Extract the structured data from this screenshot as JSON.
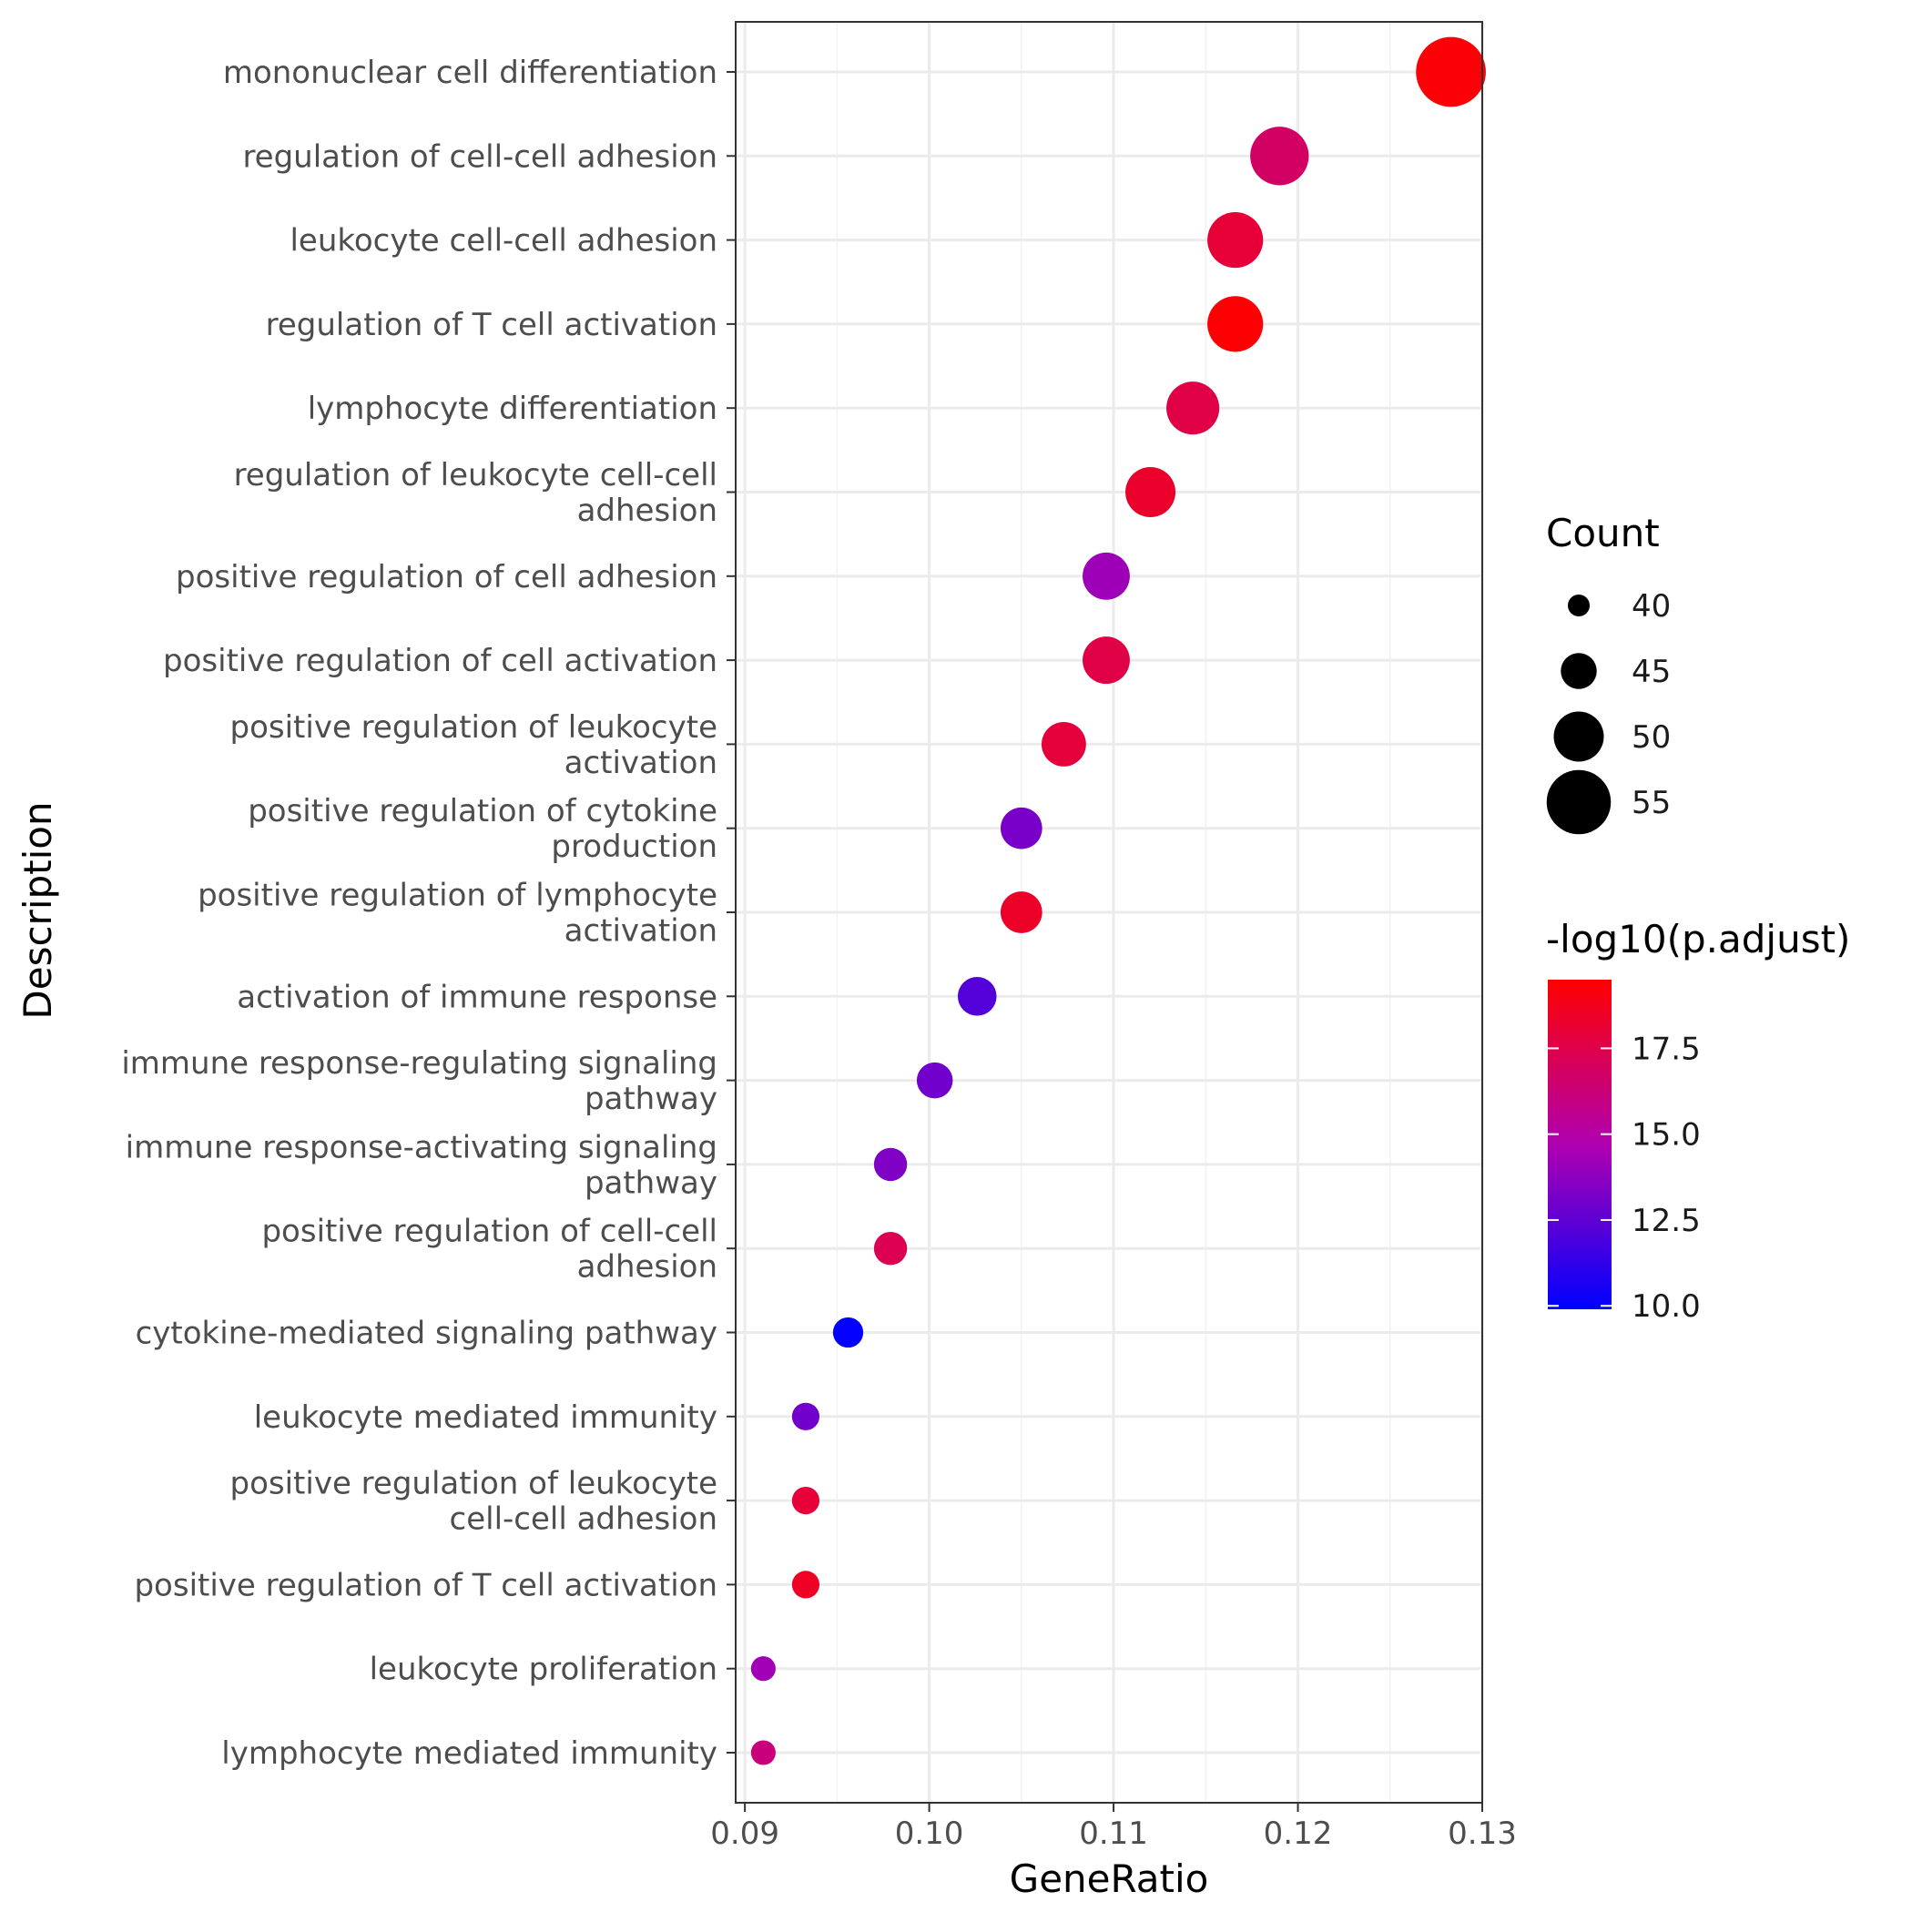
{
  "chart_data": {
    "type": "scatter",
    "xlabel": "GeneRatio",
    "ylabel": "Description",
    "xlim": [
      0.0895,
      0.13
    ],
    "xticks": [
      0.09,
      0.1,
      0.11,
      0.12,
      0.13
    ],
    "xtick_labels": [
      "0.09",
      "0.10",
      "0.11",
      "0.12",
      "0.13"
    ],
    "grid": true,
    "legend_position": "right",
    "size_legend": {
      "title": "Count",
      "entries": [
        {
          "label": "40",
          "value": 40
        },
        {
          "label": "45",
          "value": 45
        },
        {
          "label": "50",
          "value": 50
        },
        {
          "label": "55",
          "value": 55
        }
      ]
    },
    "color_legend": {
      "title": "-log10(p.adjust)",
      "range": [
        9.9,
        19.5
      ],
      "low_color": "#0000ff",
      "high_color": "#ff0000",
      "ticks": [
        {
          "label": "10.0",
          "value": 10.0
        },
        {
          "label": "12.5",
          "value": 12.5
        },
        {
          "label": "15.0",
          "value": 15.0
        },
        {
          "label": "17.5",
          "value": 17.5
        }
      ]
    },
    "points": [
      {
        "label": [
          "mononuclear cell differentiation"
        ],
        "x": 0.1283,
        "count": 57,
        "p": 19.3
      },
      {
        "label": [
          "regulation of cell-cell adhesion"
        ],
        "x": 0.119,
        "count": 53,
        "p": 16.8
      },
      {
        "label": [
          "leukocyte cell-cell adhesion"
        ],
        "x": 0.1166,
        "count": 52,
        "p": 18.0
      },
      {
        "label": [
          "regulation of T cell activation"
        ],
        "x": 0.1166,
        "count": 52,
        "p": 19.4
      },
      {
        "label": [
          "lymphocyte differentiation"
        ],
        "x": 0.1143,
        "count": 51,
        "p": 17.6
      },
      {
        "label": [
          "regulation of leukocyte cell-cell",
          "adhesion"
        ],
        "x": 0.112,
        "count": 50,
        "p": 18.3
      },
      {
        "label": [
          "positive regulation of cell adhesion"
        ],
        "x": 0.1096,
        "count": 49,
        "p": 14.2
      },
      {
        "label": [
          "positive regulation of cell activation"
        ],
        "x": 0.1096,
        "count": 49,
        "p": 17.6
      },
      {
        "label": [
          "positive regulation of leukocyte",
          "activation"
        ],
        "x": 0.1073,
        "count": 48,
        "p": 17.9
      },
      {
        "label": [
          "positive regulation of cytokine",
          "production"
        ],
        "x": 0.105,
        "count": 47,
        "p": 13.2
      },
      {
        "label": [
          "positive regulation of lymphocyte",
          "activation"
        ],
        "x": 0.105,
        "count": 47,
        "p": 18.4
      },
      {
        "label": [
          "activation of immune response"
        ],
        "x": 0.1026,
        "count": 46,
        "p": 12.2
      },
      {
        "label": [
          "immune response-regulating signaling",
          "pathway"
        ],
        "x": 0.1003,
        "count": 45,
        "p": 13.0
      },
      {
        "label": [
          "immune response-activating signaling",
          "pathway"
        ],
        "x": 0.0979,
        "count": 44,
        "p": 13.4
      },
      {
        "label": [
          "positive regulation of cell-cell",
          "adhesion"
        ],
        "x": 0.0979,
        "count": 44,
        "p": 17.3
      },
      {
        "label": [
          "cytokine-mediated signaling pathway"
        ],
        "x": 0.0956,
        "count": 43,
        "p": 10.0
      },
      {
        "label": [
          "leukocyte mediated immunity"
        ],
        "x": 0.0933,
        "count": 42,
        "p": 13.0
      },
      {
        "label": [
          "positive regulation of leukocyte",
          "cell-cell adhesion"
        ],
        "x": 0.0933,
        "count": 42,
        "p": 18.0
      },
      {
        "label": [
          "positive regulation of T cell activation"
        ],
        "x": 0.0933,
        "count": 42,
        "p": 18.5
      },
      {
        "label": [
          "leukocyte proliferation"
        ],
        "x": 0.091,
        "count": 41,
        "p": 14.3
      },
      {
        "label": [
          "lymphocyte mediated immunity"
        ],
        "x": 0.091,
        "count": 41,
        "p": 16.2
      }
    ]
  }
}
